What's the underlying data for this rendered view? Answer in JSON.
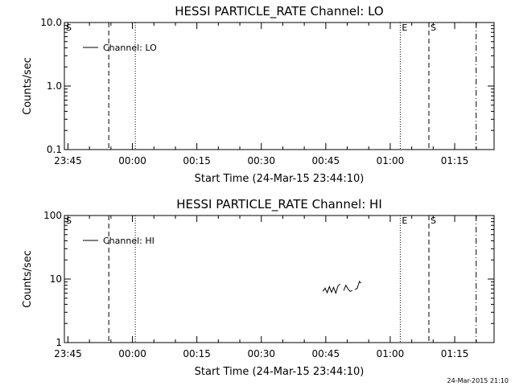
{
  "footer": {
    "timestamp": "24-Mar-2015 21:10"
  },
  "colors": {
    "foreground": "#000000",
    "background": "#ffffff"
  },
  "chart_data": [
    {
      "type": "line",
      "title": "HESSI PARTICLE_RATE Channel: LO",
      "xlabel": "Start Time (24-Mar-15 23:44:10)",
      "ylabel": "Counts/sec",
      "yscale": "log",
      "ylim": [
        0.1,
        10.0
      ],
      "yticks": [
        0.1,
        1.0,
        10.0
      ],
      "ytick_labels": [
        "0.1",
        "1.0",
        "10.0"
      ],
      "xlim": [
        "23:44:10",
        "01:24:10"
      ],
      "xticks": [
        "23:45",
        "00:00",
        "00:15",
        "00:30",
        "00:45",
        "01:00",
        "01:15"
      ],
      "legend": {
        "placement": "top-left",
        "entries": [
          "Channel: LO"
        ]
      },
      "series": [
        {
          "name": "Channel: LO",
          "points": []
        }
      ],
      "markers": [
        {
          "time": "23:44:10",
          "style": "dashed",
          "label": "S"
        },
        {
          "time": "23:54:30",
          "style": "dashed",
          "label": ""
        },
        {
          "time": "00:00:40",
          "style": "dotted",
          "label": ""
        },
        {
          "time": "01:02:20",
          "style": "dotted",
          "label": "E"
        },
        {
          "time": "01:09:00",
          "style": "dashed",
          "label": "S"
        },
        {
          "time": "01:20:00",
          "style": "dashdot",
          "label": ""
        }
      ],
      "grid": false
    },
    {
      "type": "line",
      "title": "HESSI PARTICLE_RATE Channel: HI",
      "xlabel": "Start Time (24-Mar-15 23:44:10)",
      "ylabel": "Counts/sec",
      "yscale": "log",
      "ylim": [
        1,
        100
      ],
      "yticks": [
        1,
        10,
        100
      ],
      "ytick_labels": [
        "1",
        "10",
        "100"
      ],
      "xlim": [
        "23:44:10",
        "01:24:10"
      ],
      "xticks": [
        "23:45",
        "00:00",
        "00:15",
        "00:30",
        "00:45",
        "01:00",
        "01:15"
      ],
      "legend": {
        "placement": "top-left",
        "entries": [
          "Channel: HI"
        ]
      },
      "series": [
        {
          "name": "Channel: HI",
          "segments": [
            [
              [
                "00:44:20",
                6.4
              ],
              [
                "00:44:50",
                7.2
              ],
              [
                "00:45:20",
                6.1
              ],
              [
                "00:45:50",
                7.6
              ],
              [
                "00:46:20",
                6.2
              ],
              [
                "00:46:50",
                7.4
              ],
              [
                "00:47:20",
                6.0
              ],
              [
                "00:47:50",
                7.8
              ],
              [
                "00:48:20",
                8.3
              ]
            ],
            [
              [
                "00:49:10",
                6.6
              ],
              [
                "00:49:40",
                8.0
              ],
              [
                "00:50:10",
                7.0
              ],
              [
                "00:50:40",
                6.4
              ],
              [
                "00:51:10",
                6.6
              ]
            ],
            [
              [
                "00:51:50",
                6.8
              ],
              [
                "00:52:20",
                7.2
              ],
              [
                "00:52:50",
                9.2
              ],
              [
                "00:53:10",
                8.6
              ]
            ]
          ]
        }
      ],
      "markers": [
        {
          "time": "23:44:10",
          "style": "dashed",
          "label": "S"
        },
        {
          "time": "23:54:30",
          "style": "dashed",
          "label": ""
        },
        {
          "time": "00:00:40",
          "style": "dotted",
          "label": ""
        },
        {
          "time": "01:02:20",
          "style": "dotted",
          "label": "E"
        },
        {
          "time": "01:09:00",
          "style": "dashed",
          "label": "S"
        },
        {
          "time": "01:20:00",
          "style": "dashdot",
          "label": ""
        }
      ],
      "grid": false
    }
  ]
}
